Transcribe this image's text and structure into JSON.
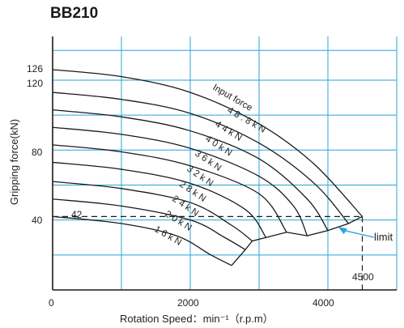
{
  "chart_data": {
    "type": "line",
    "title": "BB210",
    "xlabel": "Rotation Speed：min⁻¹（r.p.m）",
    "ylabel": "Gripping force(kN)",
    "xlim": [
      0,
      5000
    ],
    "ylim": [
      0,
      145
    ],
    "x_ticks": [
      "0",
      "2000",
      "4000"
    ],
    "y_ticks": [
      "40",
      "80",
      "120",
      "126"
    ],
    "grid": true,
    "legend_title": "Input force",
    "series": [
      {
        "name": "4 8 . 8 k N",
        "points": [
          [
            0,
            126
          ],
          [
            1000,
            122
          ],
          [
            2000,
            113
          ],
          [
            3000,
            95
          ],
          [
            3800,
            72
          ],
          [
            4500,
            42
          ]
        ]
      },
      {
        "name": "4 4 k N",
        "points": [
          [
            0,
            113
          ],
          [
            1000,
            109
          ],
          [
            2000,
            101
          ],
          [
            3000,
            84
          ],
          [
            3800,
            61
          ],
          [
            4300,
            38
          ]
        ]
      },
      {
        "name": "4 0 k N",
        "points": [
          [
            0,
            103
          ],
          [
            1000,
            99
          ],
          [
            2000,
            91
          ],
          [
            3000,
            75
          ],
          [
            3700,
            52
          ],
          [
            4000,
            34
          ]
        ]
      },
      {
        "name": "3 6 k N",
        "points": [
          [
            0,
            93
          ],
          [
            1000,
            89
          ],
          [
            2000,
            81
          ],
          [
            3000,
            65
          ],
          [
            3500,
            48
          ],
          [
            3700,
            31
          ]
        ]
      },
      {
        "name": "3 2 k N",
        "points": [
          [
            0,
            83
          ],
          [
            1000,
            79
          ],
          [
            2000,
            71
          ],
          [
            3000,
            55
          ],
          [
            3400,
            33
          ]
        ]
      },
      {
        "name": "2 8 k N",
        "points": [
          [
            0,
            73
          ],
          [
            1000,
            69
          ],
          [
            2000,
            61
          ],
          [
            2800,
            46
          ],
          [
            3100,
            30
          ]
        ]
      },
      {
        "name": "2 4 k N",
        "points": [
          [
            0,
            62
          ],
          [
            1000,
            58
          ],
          [
            2000,
            50
          ],
          [
            2600,
            37
          ],
          [
            2900,
            28
          ]
        ]
      },
      {
        "name": "2 0 k N",
        "points": [
          [
            0,
            52
          ],
          [
            1000,
            48
          ],
          [
            2000,
            40
          ],
          [
            2500,
            30
          ],
          [
            2800,
            23
          ]
        ]
      },
      {
        "name": "1 6 k N",
        "points": [
          [
            0,
            42
          ],
          [
            1000,
            38
          ],
          [
            1800,
            31
          ],
          [
            2300,
            20
          ],
          [
            2600,
            14
          ]
        ]
      }
    ],
    "reference_lines": [
      {
        "label": "42",
        "y": 42,
        "style": "dashed"
      },
      {
        "label": "4500",
        "x": 4500,
        "style": "dashed"
      }
    ],
    "annotations": [
      {
        "text": "limit"
      }
    ],
    "colors": {
      "grid": "#2aa3d9",
      "curve": "#1a1a1a",
      "axis": "#1a1a1a"
    }
  }
}
